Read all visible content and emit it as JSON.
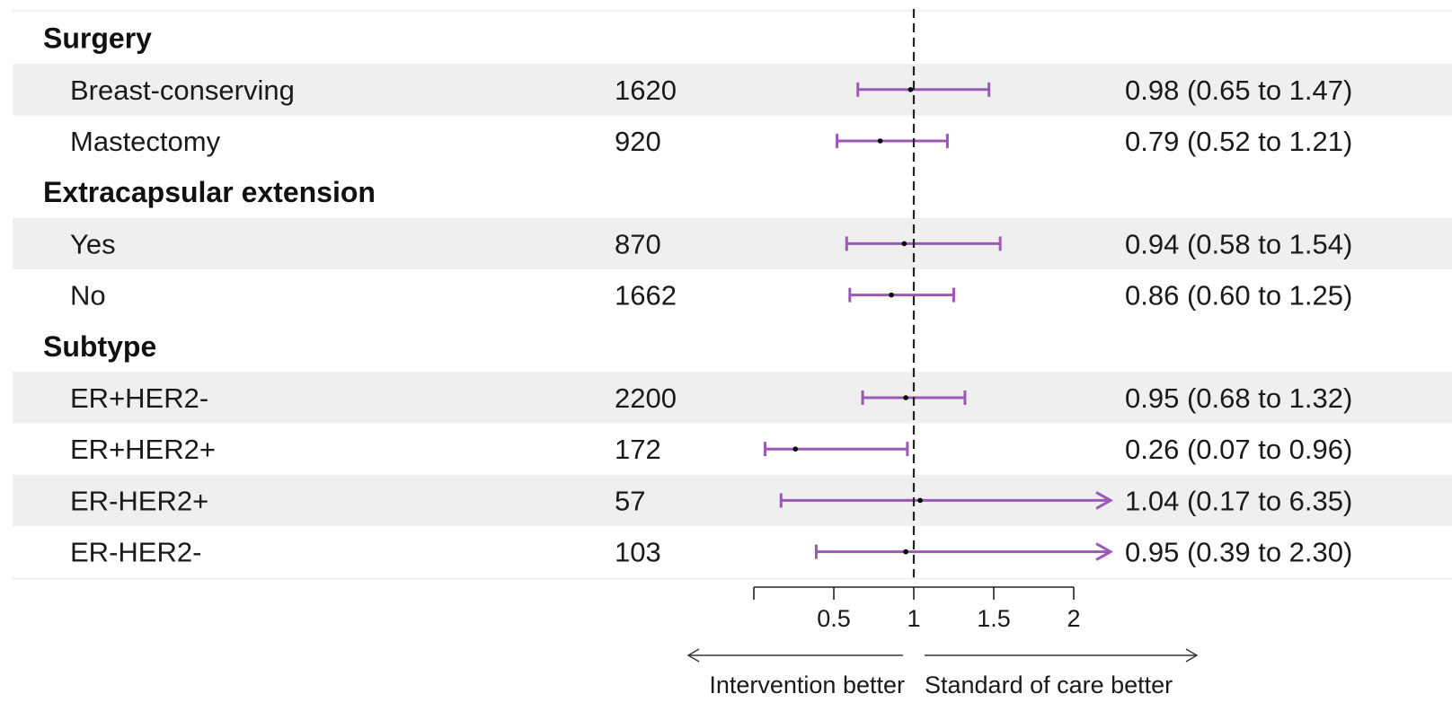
{
  "chart_data": {
    "type": "forest",
    "title": "",
    "xlabel": "",
    "reference_line": 1,
    "x_ticks": [
      "0.5",
      "1",
      "1.5",
      "2"
    ],
    "x_tick_values": [
      0.5,
      1,
      1.5,
      2
    ],
    "xlim": [
      0,
      2
    ],
    "direction_left": "Intervention better",
    "direction_right": "Standard of care better",
    "ci_color": "#9b59b6",
    "point_color": "#000000",
    "stripe_color": "#efefef",
    "rows": [
      {
        "kind": "group",
        "label": "Surgery"
      },
      {
        "kind": "item",
        "label": "Breast-conserving",
        "n": "1620",
        "estimate": 0.98,
        "lower": 0.65,
        "upper": 1.47,
        "text": "0.98 (0.65 to 1.47)"
      },
      {
        "kind": "item",
        "label": "Mastectomy",
        "n": "920",
        "estimate": 0.79,
        "lower": 0.52,
        "upper": 1.21,
        "text": "0.79 (0.52 to 1.21)"
      },
      {
        "kind": "group",
        "label": "Extracapsular extension"
      },
      {
        "kind": "item",
        "label": "Yes",
        "n": "870",
        "estimate": 0.94,
        "lower": 0.58,
        "upper": 1.54,
        "text": "0.94 (0.58 to 1.54)"
      },
      {
        "kind": "item",
        "label": "No",
        "n": "1662",
        "estimate": 0.86,
        "lower": 0.6,
        "upper": 1.25,
        "text": "0.86 (0.60 to 1.25)"
      },
      {
        "kind": "group",
        "label": "Subtype"
      },
      {
        "kind": "item",
        "label": "ER+HER2-",
        "n": "2200",
        "estimate": 0.95,
        "lower": 0.68,
        "upper": 1.32,
        "text": "0.95 (0.68 to 1.32)"
      },
      {
        "kind": "item",
        "label": "ER+HER2+",
        "n": "172",
        "estimate": 0.26,
        "lower": 0.07,
        "upper": 0.96,
        "text": "0.26 (0.07 to 0.96)"
      },
      {
        "kind": "item",
        "label": "ER-HER2+",
        "n": "57",
        "estimate": 1.04,
        "lower": 0.17,
        "upper": 6.35,
        "text": "1.04 (0.17 to 6.35)"
      },
      {
        "kind": "item",
        "label": "ER-HER2-",
        "n": "103",
        "estimate": 0.95,
        "lower": 0.39,
        "upper": 2.3,
        "text": "0.95 (0.39 to 2.30)"
      }
    ]
  }
}
